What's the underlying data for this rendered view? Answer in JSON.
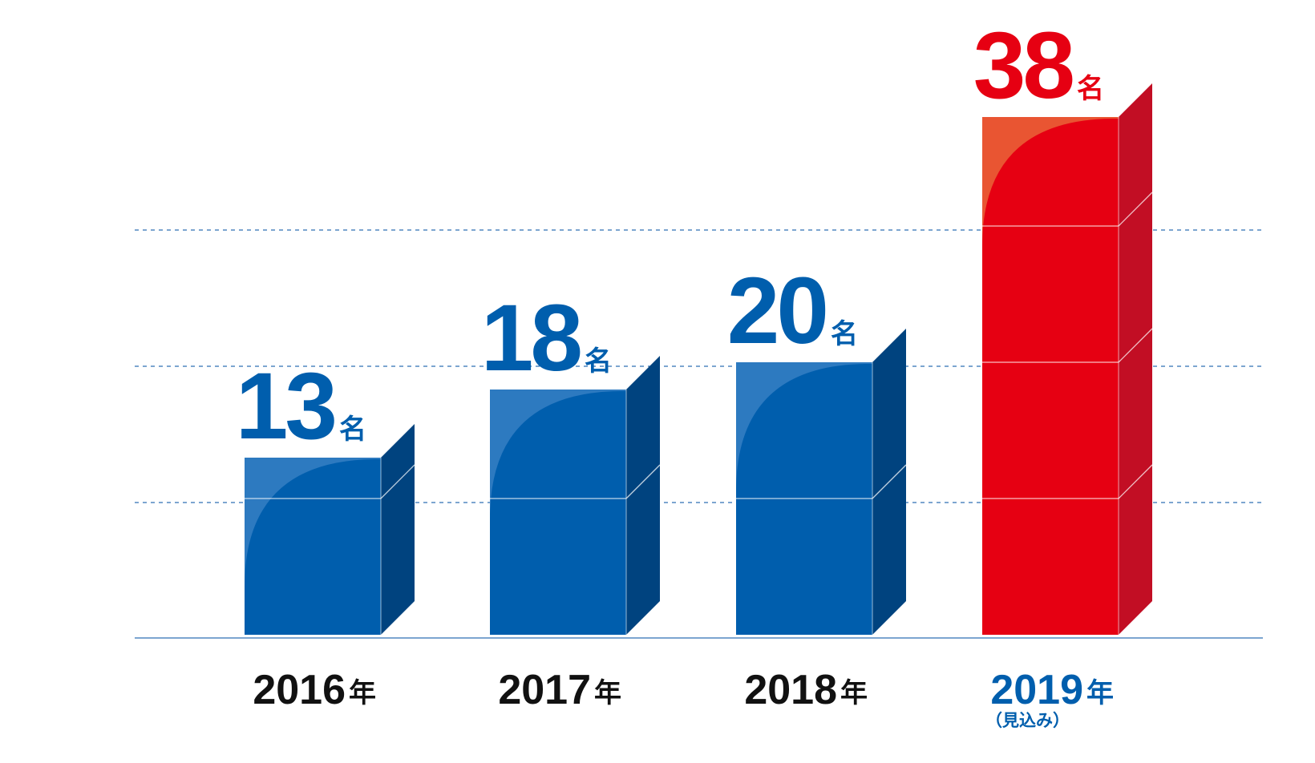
{
  "chart_data": {
    "type": "bar",
    "categories": [
      "2016",
      "2017",
      "2018",
      "2019"
    ],
    "category_suffix": "年",
    "values": [
      13,
      18,
      20,
      38
    ],
    "value_suffix": "名",
    "category_notes": [
      "",
      "",
      "",
      "（見込み）"
    ],
    "highlight_index": 3,
    "ylim": [
      0,
      40
    ],
    "grid": "dashed",
    "title": "",
    "xlabel": "",
    "ylabel": ""
  },
  "colors": {
    "bar_front": "#005EAD",
    "bar_side": "#00437F",
    "bar_top_highlight": "#2D7AC0",
    "highlight_front": "#E60012",
    "highlight_side": "#C20E24",
    "highlight_top": "#E95532",
    "value_text": "#005EAD",
    "highlight_value_text": "#E60012",
    "year_text": "#111111",
    "highlight_year_text": "#005EAD",
    "gridline": "#2F6FB5",
    "baseline": "#2F6FB5"
  }
}
